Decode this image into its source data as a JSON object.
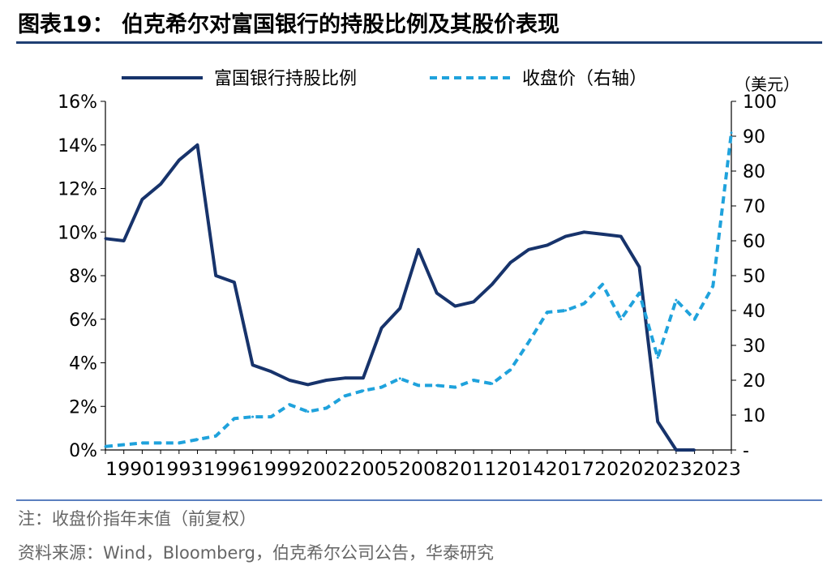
{
  "title": "图表19：  伯克希尔对富国银行的持股比例及其股价表现",
  "note": "注：收盘价指年末值（前复权）",
  "source": "资料来源：Wind，Bloomberg，伯克希尔公司公告，华泰研究",
  "colors": {
    "series1": "#17336b",
    "series2": "#1fa2dc",
    "axis": "#000000",
    "rule": "#1f3f73"
  },
  "chart_data": {
    "type": "line",
    "legend_position": "top",
    "grid": false,
    "right_axis_unit": "（美元）",
    "x": [
      1990,
      1991,
      1992,
      1993,
      1994,
      1995,
      1996,
      1997,
      1998,
      1999,
      2000,
      2001,
      2002,
      2003,
      2004,
      2005,
      2006,
      2007,
      2008,
      2009,
      2010,
      2011,
      2012,
      2013,
      2014,
      2015,
      2016,
      2017,
      2018,
      2019,
      2020,
      2021,
      2022,
      2023,
      2024
    ],
    "x_tick_labels": [
      "1990",
      "",
      "1993",
      "",
      "1996",
      "",
      "1999",
      "",
      "2002",
      "",
      "2005",
      "",
      "2008",
      "",
      "2011",
      "",
      "2014",
      "",
      "2017",
      "",
      "2020",
      "",
      "2023",
      ""
    ],
    "x_tick_text": "1990199319961999200220052008201120142017202020232023",
    "series": [
      {
        "name": "富国银行持股比例",
        "axis": "left",
        "style": "solid",
        "x": [
          1990,
          1991,
          1992,
          1993,
          1994,
          1995,
          1996,
          1997,
          1998,
          1999,
          2000,
          2001,
          2002,
          2003,
          2004,
          2005,
          2006,
          2007,
          2008,
          2009,
          2010,
          2011,
          2012,
          2013,
          2014,
          2015,
          2016,
          2017,
          2018,
          2019,
          2020,
          2021,
          2022
        ],
        "values": [
          9.7,
          9.6,
          11.5,
          12.2,
          13.3,
          14.0,
          8.0,
          7.7,
          3.9,
          3.6,
          3.2,
          3.0,
          3.2,
          3.3,
          3.3,
          5.6,
          6.5,
          9.2,
          7.2,
          6.6,
          6.8,
          7.6,
          8.6,
          9.2,
          9.4,
          9.8,
          10.0,
          9.9,
          9.8,
          8.4,
          1.3,
          0.0,
          0.0
        ]
      },
      {
        "name": "收盘价（右轴）",
        "axis": "right",
        "style": "dashed",
        "x": [
          1990,
          1991,
          1992,
          1993,
          1994,
          1995,
          1996,
          1997,
          1998,
          1999,
          2000,
          2001,
          2002,
          2003,
          2004,
          2005,
          2006,
          2007,
          2008,
          2009,
          2010,
          2011,
          2012,
          2013,
          2014,
          2015,
          2016,
          2017,
          2018,
          2019,
          2020,
          2021,
          2022,
          2023,
          2024
        ],
        "values": [
          1,
          1.5,
          2,
          2,
          2,
          3,
          4,
          9,
          9.5,
          9.5,
          13,
          11,
          12,
          15.5,
          17,
          18,
          20.5,
          18.5,
          18.5,
          18,
          20,
          19,
          23,
          31,
          39.5,
          40,
          42,
          47.5,
          37.5,
          45,
          26.5,
          43,
          37.5,
          47,
          91
        ]
      }
    ],
    "left_axis": {
      "ylim": [
        0,
        16
      ],
      "ticks": [
        "0%",
        "2%",
        "4%",
        "6%",
        "8%",
        "10%",
        "12%",
        "14%",
        "16%"
      ]
    },
    "right_axis": {
      "ylim": [
        0,
        100
      ],
      "ticks": [
        "-",
        "10",
        "20",
        "30",
        "40",
        "50",
        "60",
        "70",
        "80",
        "90",
        "100"
      ]
    }
  }
}
